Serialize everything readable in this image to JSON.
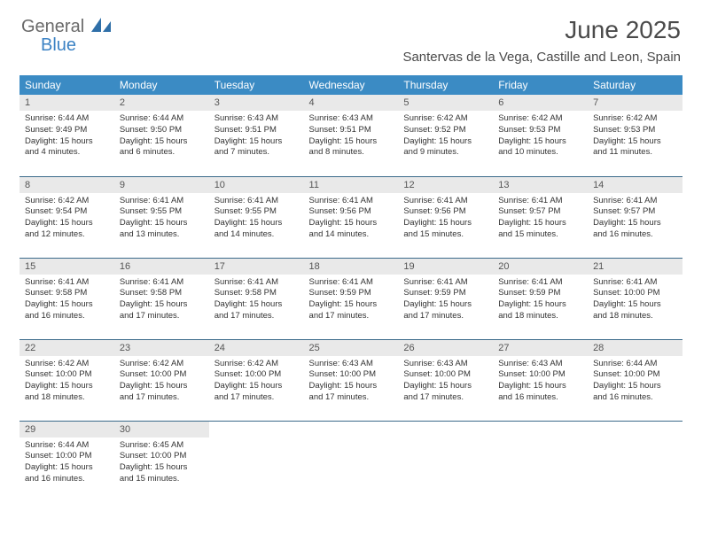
{
  "logo": {
    "text1": "General",
    "text2": "Blue"
  },
  "title": "June 2025",
  "location": "Santervas de la Vega, Castille and Leon, Spain",
  "colors": {
    "header_bg": "#3b8bc4",
    "header_text": "#ffffff",
    "daynum_bg": "#e9e9e9",
    "row_border": "#3b6a8a",
    "logo_gray": "#6a6a6a",
    "logo_blue": "#3b82c4",
    "body_text": "#333333",
    "background": "#ffffff"
  },
  "weekdays": [
    "Sunday",
    "Monday",
    "Tuesday",
    "Wednesday",
    "Thursday",
    "Friday",
    "Saturday"
  ],
  "days": [
    {
      "n": "1",
      "sr": "6:44 AM",
      "ss": "9:49 PM",
      "dl": "15 hours and 4 minutes."
    },
    {
      "n": "2",
      "sr": "6:44 AM",
      "ss": "9:50 PM",
      "dl": "15 hours and 6 minutes."
    },
    {
      "n": "3",
      "sr": "6:43 AM",
      "ss": "9:51 PM",
      "dl": "15 hours and 7 minutes."
    },
    {
      "n": "4",
      "sr": "6:43 AM",
      "ss": "9:51 PM",
      "dl": "15 hours and 8 minutes."
    },
    {
      "n": "5",
      "sr": "6:42 AM",
      "ss": "9:52 PM",
      "dl": "15 hours and 9 minutes."
    },
    {
      "n": "6",
      "sr": "6:42 AM",
      "ss": "9:53 PM",
      "dl": "15 hours and 10 minutes."
    },
    {
      "n": "7",
      "sr": "6:42 AM",
      "ss": "9:53 PM",
      "dl": "15 hours and 11 minutes."
    },
    {
      "n": "8",
      "sr": "6:42 AM",
      "ss": "9:54 PM",
      "dl": "15 hours and 12 minutes."
    },
    {
      "n": "9",
      "sr": "6:41 AM",
      "ss": "9:55 PM",
      "dl": "15 hours and 13 minutes."
    },
    {
      "n": "10",
      "sr": "6:41 AM",
      "ss": "9:55 PM",
      "dl": "15 hours and 14 minutes."
    },
    {
      "n": "11",
      "sr": "6:41 AM",
      "ss": "9:56 PM",
      "dl": "15 hours and 14 minutes."
    },
    {
      "n": "12",
      "sr": "6:41 AM",
      "ss": "9:56 PM",
      "dl": "15 hours and 15 minutes."
    },
    {
      "n": "13",
      "sr": "6:41 AM",
      "ss": "9:57 PM",
      "dl": "15 hours and 15 minutes."
    },
    {
      "n": "14",
      "sr": "6:41 AM",
      "ss": "9:57 PM",
      "dl": "15 hours and 16 minutes."
    },
    {
      "n": "15",
      "sr": "6:41 AM",
      "ss": "9:58 PM",
      "dl": "15 hours and 16 minutes."
    },
    {
      "n": "16",
      "sr": "6:41 AM",
      "ss": "9:58 PM",
      "dl": "15 hours and 17 minutes."
    },
    {
      "n": "17",
      "sr": "6:41 AM",
      "ss": "9:58 PM",
      "dl": "15 hours and 17 minutes."
    },
    {
      "n": "18",
      "sr": "6:41 AM",
      "ss": "9:59 PM",
      "dl": "15 hours and 17 minutes."
    },
    {
      "n": "19",
      "sr": "6:41 AM",
      "ss": "9:59 PM",
      "dl": "15 hours and 17 minutes."
    },
    {
      "n": "20",
      "sr": "6:41 AM",
      "ss": "9:59 PM",
      "dl": "15 hours and 18 minutes."
    },
    {
      "n": "21",
      "sr": "6:41 AM",
      "ss": "10:00 PM",
      "dl": "15 hours and 18 minutes."
    },
    {
      "n": "22",
      "sr": "6:42 AM",
      "ss": "10:00 PM",
      "dl": "15 hours and 18 minutes."
    },
    {
      "n": "23",
      "sr": "6:42 AM",
      "ss": "10:00 PM",
      "dl": "15 hours and 17 minutes."
    },
    {
      "n": "24",
      "sr": "6:42 AM",
      "ss": "10:00 PM",
      "dl": "15 hours and 17 minutes."
    },
    {
      "n": "25",
      "sr": "6:43 AM",
      "ss": "10:00 PM",
      "dl": "15 hours and 17 minutes."
    },
    {
      "n": "26",
      "sr": "6:43 AM",
      "ss": "10:00 PM",
      "dl": "15 hours and 17 minutes."
    },
    {
      "n": "27",
      "sr": "6:43 AM",
      "ss": "10:00 PM",
      "dl": "15 hours and 16 minutes."
    },
    {
      "n": "28",
      "sr": "6:44 AM",
      "ss": "10:00 PM",
      "dl": "15 hours and 16 minutes."
    },
    {
      "n": "29",
      "sr": "6:44 AM",
      "ss": "10:00 PM",
      "dl": "15 hours and 16 minutes."
    },
    {
      "n": "30",
      "sr": "6:45 AM",
      "ss": "10:00 PM",
      "dl": "15 hours and 15 minutes."
    }
  ],
  "labels": {
    "sunrise": "Sunrise:",
    "sunset": "Sunset:",
    "daylight": "Daylight:"
  }
}
